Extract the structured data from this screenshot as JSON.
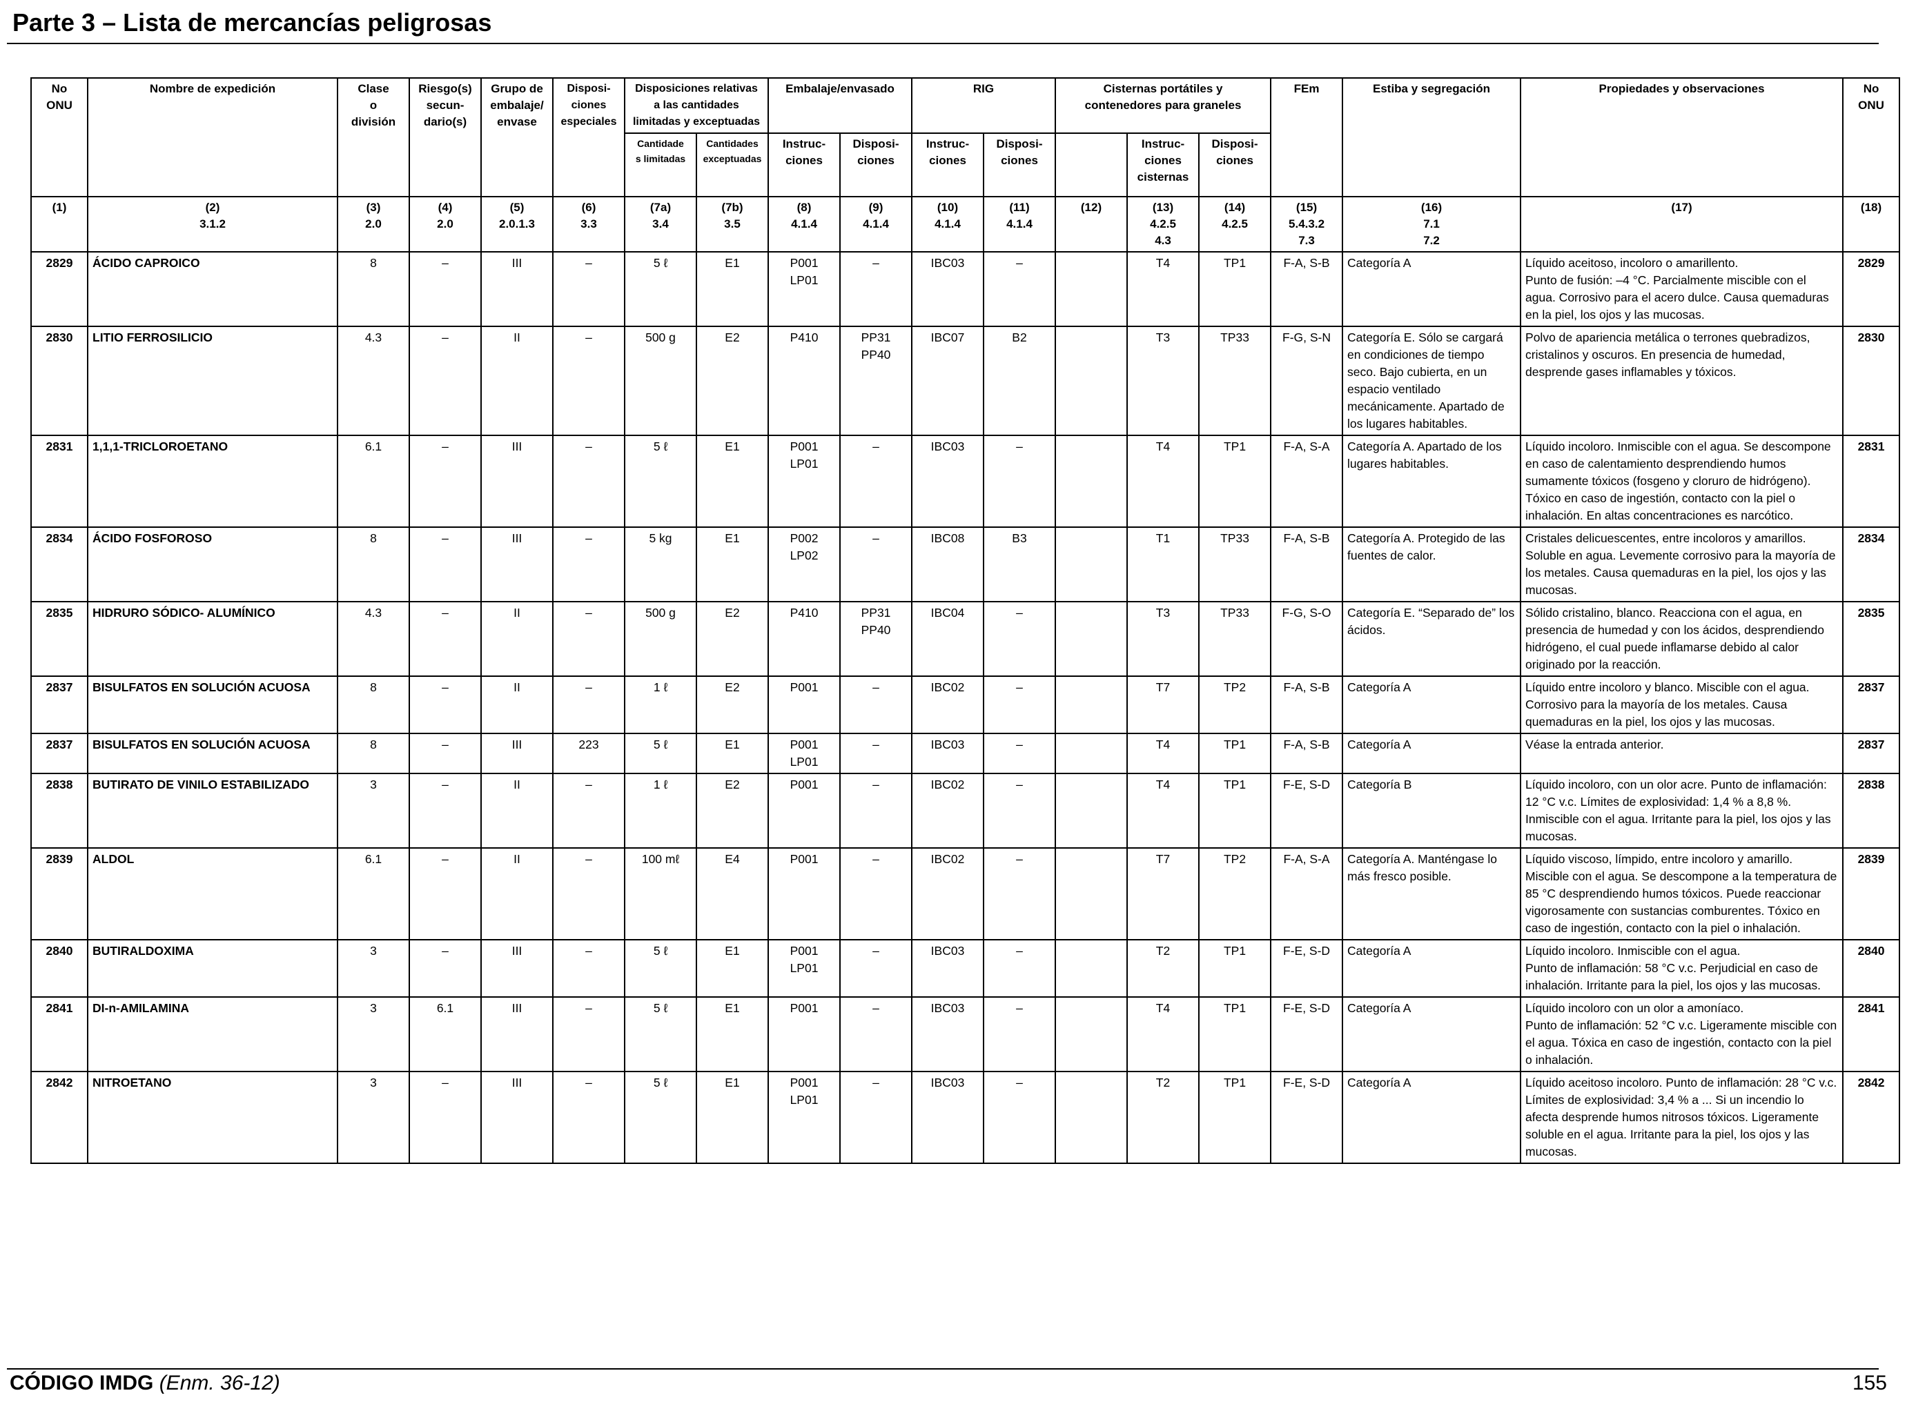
{
  "page": {
    "title": "Parte 3 – Lista de mercancías peligrosas",
    "footer_code": "CÓDIGO IMDG",
    "footer_amendment": "(Enm. 36-12)",
    "page_number": "155"
  },
  "header": {
    "no_onu": "No\nONU",
    "nombre": "Nombre de expedición",
    "clase": "Clase\no\ndivisión",
    "riesgo": "Riesgo(s)\nsecun-\ndario(s)",
    "grupo": "Grupo de\nembalaje/\nenvase",
    "dispos_especiales": "Disposi-\nciones\nespeciales",
    "disp_relativas": "Disposiciones relativas\na las cantidades\nlimitadas y exceptuadas",
    "embalaje": "Embalaje/envasado",
    "rig": "RIG",
    "cisternas": "Cisternas portátiles y\ncontenedores para graneles",
    "fem": "FEm",
    "estiba": "Estiba y segregación",
    "propiedades": "Propiedades y observaciones",
    "no_onu_right": "No\nONU",
    "sub_cant_limitadas": "Cantidade\ns limitadas",
    "sub_cant_exceptuadas": "Cantidades\nexceptuadas",
    "sub_emb_instr": "Instruc-\nciones",
    "sub_emb_disp": "Disposi-\nciones",
    "sub_rig_instr": "Instruc-\nciones",
    "sub_rig_disp": "Disposi-\nciones",
    "sub_cist_instr": "Instruc-\nciones\ncisternas",
    "sub_cist_disp": "Disposi-\nciones"
  },
  "column_refs": [
    "(1)",
    "(2)\n3.1.2",
    "(3)\n2.0",
    "(4)\n2.0",
    "(5)\n2.0.1.3",
    "(6)\n3.3",
    "(7a)\n3.4",
    "(7b)\n3.5",
    "(8)\n4.1.4",
    "(9)\n4.1.4",
    "(10)\n4.1.4",
    "(11)\n4.1.4",
    "(12)",
    "(13)\n4.2.5\n4.3",
    "(14)\n4.2.5",
    "(15)\n5.4.3.2\n7.3",
    "(16)\n7.1\n7.2",
    "(17)",
    "(18)"
  ],
  "rows": [
    {
      "onu": "2829",
      "nombre": "ÁCIDO CAPROICO",
      "clase": "8",
      "riesgo": "–",
      "grupo": "III",
      "disp": "–",
      "q7a": "5 ℓ",
      "q7b": "E1",
      "emb_instr": "P001\nLP01",
      "emb_disp": "–",
      "rig_instr": "IBC03",
      "rig_disp": "–",
      "c12": "",
      "cist_instr": "T4",
      "cist_disp": "TP1",
      "fem": "F-A, S-B",
      "estiba": "Categoría A",
      "prop": "Líquido aceitoso, incoloro o amarillento.\nPunto de fusión: –4 °C. Parcialmente miscible con el agua. Corrosivo para el acero dulce. Causa quemaduras en la piel, los ojos y las mucosas.",
      "onu_r": "2829"
    },
    {
      "onu": "2830",
      "nombre": "LITIO FERROSILICIO",
      "clase": "4.3",
      "riesgo": "–",
      "grupo": "II",
      "disp": "–",
      "q7a": "500 g",
      "q7b": "E2",
      "emb_instr": "P410",
      "emb_disp": "PP31\nPP40",
      "rig_instr": "IBC07",
      "rig_disp": "B2",
      "c12": "",
      "cist_instr": "T3",
      "cist_disp": "TP33",
      "fem": "F-G, S-N",
      "estiba": "Categoría E. Sólo se cargará en condiciones de tiempo seco. Bajo cubierta, en un espacio ventilado mecánicamente. Apartado de los lugares habitables.",
      "prop": "Polvo de apariencia metálica o terrones quebradizos, cristalinos y oscuros. En presencia de humedad, desprende gases inflamables y tóxicos.",
      "onu_r": "2830"
    },
    {
      "onu": "2831",
      "nombre": "1,1,1-TRICLOROETANO",
      "clase": "6.1",
      "riesgo": "–",
      "grupo": "III",
      "disp": "–",
      "q7a": "5 ℓ",
      "q7b": "E1",
      "emb_instr": "P001\nLP01",
      "emb_disp": "–",
      "rig_instr": "IBC03",
      "rig_disp": "–",
      "c12": "",
      "cist_instr": "T4",
      "cist_disp": "TP1",
      "fem": "F-A, S-A",
      "estiba": "Categoría A. Apartado de los lugares habitables.",
      "prop": "Líquido incoloro. Inmiscible con el agua. Se descompone en caso de calentamiento desprendiendo humos sumamente tóxicos (fosgeno y cloruro de hidrógeno). Tóxico en caso de ingestión, contacto con la piel o inhalación. En altas concentraciones es narcótico.",
      "onu_r": "2831"
    },
    {
      "onu": "2834",
      "nombre": "ÁCIDO FOSFOROSO",
      "clase": "8",
      "riesgo": "–",
      "grupo": "III",
      "disp": "–",
      "q7a": "5 kg",
      "q7b": "E1",
      "emb_instr": "P002\nLP02",
      "emb_disp": "–",
      "rig_instr": "IBC08",
      "rig_disp": "B3",
      "c12": "",
      "cist_instr": "T1",
      "cist_disp": "TP33",
      "fem": "F-A, S-B",
      "estiba": "Categoría A. Protegido de las fuentes de calor.",
      "prop": "Cristales delicuescentes, entre incoloros y amarillos. Soluble en agua. Levemente corrosivo para la mayoría de los metales. Causa quemaduras en la piel, los ojos y las mucosas.",
      "onu_r": "2834"
    },
    {
      "onu": "2835",
      "nombre": "HIDRURO SÓDICO- ALUMÍNICO",
      "clase": "4.3",
      "riesgo": "–",
      "grupo": "II",
      "disp": "–",
      "q7a": "500 g",
      "q7b": "E2",
      "emb_instr": "P410",
      "emb_disp": "PP31\nPP40",
      "rig_instr": "IBC04",
      "rig_disp": "–",
      "c12": "",
      "cist_instr": "T3",
      "cist_disp": "TP33",
      "fem": "F-G, S-O",
      "estiba": "Categoría E. “Separado de” los ácidos.",
      "prop": "Sólido cristalino, blanco. Reacciona con el agua, en presencia de humedad y con los ácidos, desprendiendo hidrógeno, el cual puede inflamarse debido al calor originado por la reacción.",
      "onu_r": "2835"
    },
    {
      "onu": "2837",
      "nombre": "BISULFATOS EN SOLUCIÓN ACUOSA",
      "clase": "8",
      "riesgo": "–",
      "grupo": "II",
      "disp": "–",
      "q7a": "1 ℓ",
      "q7b": "E2",
      "emb_instr": "P001",
      "emb_disp": "–",
      "rig_instr": "IBC02",
      "rig_disp": "–",
      "c12": "",
      "cist_instr": "T7",
      "cist_disp": "TP2",
      "fem": "F-A, S-B",
      "estiba": "Categoría A",
      "prop": "Líquido entre incoloro y blanco. Miscible con el agua. Corrosivo para la mayoría de los metales. Causa quemaduras en la piel, los ojos y las mucosas.",
      "onu_r": "2837"
    },
    {
      "onu": "2837",
      "nombre": "BISULFATOS EN SOLUCIÓN ACUOSA",
      "clase": "8",
      "riesgo": "–",
      "grupo": "III",
      "disp": "223",
      "q7a": "5 ℓ",
      "q7b": "E1",
      "emb_instr": "P001\nLP01",
      "emb_disp": "–",
      "rig_instr": "IBC03",
      "rig_disp": "–",
      "c12": "",
      "cist_instr": "T4",
      "cist_disp": "TP1",
      "fem": "F-A, S-B",
      "estiba": "Categoría A",
      "prop": "Véase la entrada anterior.",
      "onu_r": "2837"
    },
    {
      "onu": "2838",
      "nombre": "BUTIRATO DE VINILO ESTABILIZADO",
      "clase": "3",
      "riesgo": "–",
      "grupo": "II",
      "disp": "–",
      "q7a": "1 ℓ",
      "q7b": "E2",
      "emb_instr": "P001",
      "emb_disp": "–",
      "rig_instr": "IBC02",
      "rig_disp": "–",
      "c12": "",
      "cist_instr": "T4",
      "cist_disp": "TP1",
      "fem": "F-E, S-D",
      "estiba": "Categoría B",
      "prop": "Líquido incoloro, con un olor acre. Punto de inflamación: 12 °C v.c. Límites de explosividad: 1,4 % a 8,8 %. Inmiscible con el agua. Irritante para la piel, los ojos y las mucosas.",
      "onu_r": "2838"
    },
    {
      "onu": "2839",
      "nombre": "ALDOL",
      "clase": "6.1",
      "riesgo": "–",
      "grupo": "II",
      "disp": "–",
      "q7a": "100 mℓ",
      "q7b": "E4",
      "emb_instr": "P001",
      "emb_disp": "–",
      "rig_instr": "IBC02",
      "rig_disp": "–",
      "c12": "",
      "cist_instr": "T7",
      "cist_disp": "TP2",
      "fem": "F-A, S-A",
      "estiba": "Categoría A. Manténgase lo más fresco posible.",
      "prop": "Líquido viscoso, límpido, entre incoloro y amarillo. Miscible con el agua. Se descompone a la temperatura de 85 °C desprendiendo humos tóxicos. Puede reaccionar vigorosamente con sustancias comburentes. Tóxico en caso de ingestión, contacto con la piel o inhalación.",
      "onu_r": "2839"
    },
    {
      "onu": "2840",
      "nombre": "BUTIRALDOXIMA",
      "clase": "3",
      "riesgo": "–",
      "grupo": "III",
      "disp": "–",
      "q7a": "5 ℓ",
      "q7b": "E1",
      "emb_instr": "P001\nLP01",
      "emb_disp": "–",
      "rig_instr": "IBC03",
      "rig_disp": "–",
      "c12": "",
      "cist_instr": "T2",
      "cist_disp": "TP1",
      "fem": "F-E, S-D",
      "estiba": "Categoría A",
      "prop": "Líquido incoloro. Inmiscible con el agua.\nPunto de inflamación: 58 °C v.c. Perjudicial en caso de inhalación. Irritante para la piel, los ojos y las mucosas.",
      "onu_r": "2840"
    },
    {
      "onu": "2841",
      "nombre": "DI-n-AMILAMINA",
      "clase": "3",
      "riesgo": "6.1",
      "grupo": "III",
      "disp": "–",
      "q7a": "5 ℓ",
      "q7b": "E1",
      "emb_instr": "P001",
      "emb_disp": "–",
      "rig_instr": "IBC03",
      "rig_disp": "–",
      "c12": "",
      "cist_instr": "T4",
      "cist_disp": "TP1",
      "fem": "F-E, S-D",
      "estiba": "Categoría A",
      "prop": "Líquido incoloro con un olor a amoníaco.\nPunto de inflamación: 52 °C v.c. Ligeramente miscible con el agua. Tóxica en caso de ingestión, contacto con la piel o inhalación.",
      "onu_r": "2841"
    },
    {
      "onu": "2842",
      "nombre": "NITROETANO",
      "clase": "3",
      "riesgo": "–",
      "grupo": "III",
      "disp": "–",
      "q7a": "5 ℓ",
      "q7b": "E1",
      "emb_instr": "P001\nLP01",
      "emb_disp": "–",
      "rig_instr": "IBC03",
      "rig_disp": "–",
      "c12": "",
      "cist_instr": "T2",
      "cist_disp": "TP1",
      "fem": "F-E, S-D",
      "estiba": "Categoría A",
      "prop": "Líquido aceitoso incoloro. Punto de inflamación: 28 °C v.c. Límites de explosividad: 3,4 % a ... Si un incendio lo afecta desprende humos nitrosos tóxicos. Ligeramente soluble en el agua. Irritante para la piel, los ojos y las mucosas.",
      "onu_r": "2842"
    }
  ]
}
